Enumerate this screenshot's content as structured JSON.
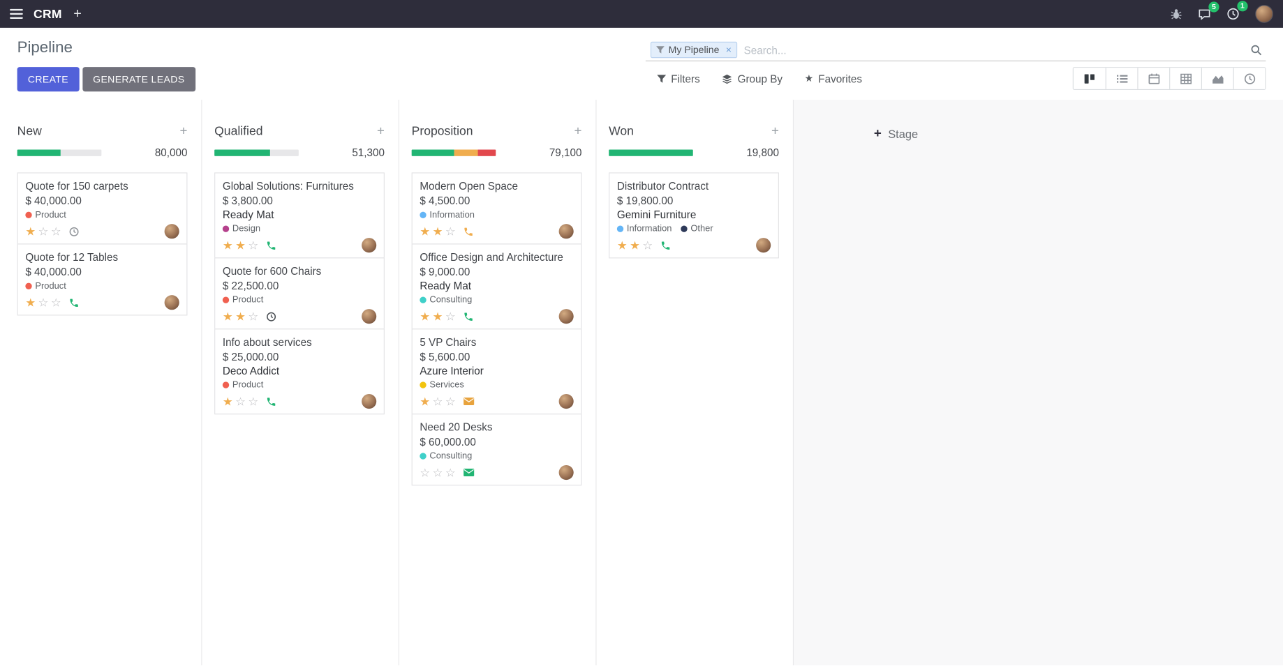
{
  "navbar": {
    "app_name": "CRM",
    "messages_badge": "5",
    "activities_badge": "1"
  },
  "control_panel": {
    "title": "Pipeline",
    "create_label": "CREATE",
    "generate_leads_label": "GENERATE LEADS",
    "search": {
      "facet_label": "My Pipeline",
      "facet_remove": "×",
      "placeholder": "Search..."
    },
    "menus": {
      "filters": "Filters",
      "group_by": "Group By",
      "favorites": "Favorites"
    }
  },
  "colors": {
    "primary_button": "#5261d9",
    "secondary_button": "#71717b",
    "progress_green": "#21b573",
    "progress_yellow": "#f0ad4e",
    "progress_red": "#e2484d",
    "notification_badge": "#23c16b",
    "star_filled": "#f0ad4e",
    "navbar_bg": "#2e2d3b"
  },
  "icons": {
    "navbar": [
      "apps-menu-icon",
      "add-tab-icon",
      "bug-icon",
      "messages-icon",
      "activities-clock-icon",
      "user-avatar"
    ],
    "search": [
      "filter-funnel-icon",
      "search-icon"
    ],
    "menus": [
      "filter-funnel-icon",
      "layers-icon",
      "star-icon"
    ],
    "view_switcher": [
      "kanban-view-icon",
      "list-view-icon",
      "calendar-view-icon",
      "pivot-view-icon",
      "graph-view-icon",
      "activity-view-icon"
    ],
    "card_activity_types": [
      "clock",
      "phone",
      "envelope"
    ]
  },
  "board": {
    "add_column_label": "Stage",
    "columns": [
      {
        "name": "New",
        "counter": "80,000",
        "progress": [
          {
            "color": "#21b573",
            "pct": 51
          }
        ],
        "cards": [
          {
            "title": "Quote for 150 carpets",
            "amount": "$ 40,000.00",
            "tags": [
              {
                "label": "Product",
                "color": "#f06050"
              }
            ],
            "stars": 1,
            "activity": {
              "type": "clock",
              "color": "#8f9398"
            }
          },
          {
            "title": "Quote for 12 Tables",
            "amount": "$ 40,000.00",
            "tags": [
              {
                "label": "Product",
                "color": "#f06050"
              }
            ],
            "stars": 1,
            "activity": {
              "type": "phone",
              "color": "#21b573"
            }
          }
        ]
      },
      {
        "name": "Qualified",
        "counter": "51,300",
        "progress": [
          {
            "color": "#21b573",
            "pct": 66
          }
        ],
        "cards": [
          {
            "title": "Global Solutions: Furnitures",
            "amount": "$ 3,800.00",
            "company": "Ready Mat",
            "tags": [
              {
                "label": "Design",
                "color": "#b5418c"
              }
            ],
            "stars": 2,
            "activity": {
              "type": "phone",
              "color": "#21b573"
            }
          },
          {
            "title": "Quote for 600 Chairs",
            "amount": "$ 22,500.00",
            "tags": [
              {
                "label": "Product",
                "color": "#f06050"
              }
            ],
            "stars": 2,
            "activity": {
              "type": "clock",
              "color": "#4a4f54"
            }
          },
          {
            "title": "Info about services",
            "amount": "$ 25,000.00",
            "company": "Deco Addict",
            "tags": [
              {
                "label": "Product",
                "color": "#f06050"
              }
            ],
            "stars": 1,
            "activity": {
              "type": "phone",
              "color": "#21b573"
            }
          }
        ]
      },
      {
        "name": "Proposition",
        "counter": "79,100",
        "progress": [
          {
            "color": "#21b573",
            "pct": 50
          },
          {
            "color": "#f0ad4e",
            "pct": 29
          },
          {
            "color": "#e2484d",
            "pct": 21
          }
        ],
        "cards": [
          {
            "title": "Modern Open Space",
            "amount": "$ 4,500.00",
            "tags": [
              {
                "label": "Information",
                "color": "#64b5f6"
              }
            ],
            "stars": 2,
            "activity": {
              "type": "phone",
              "color": "#f0ad4e"
            }
          },
          {
            "title": "Office Design and Architecture",
            "amount": "$ 9,000.00",
            "company": "Ready Mat",
            "tags": [
              {
                "label": "Consulting",
                "color": "#3fd0c9"
              }
            ],
            "stars": 2,
            "activity": {
              "type": "phone",
              "color": "#21b573"
            }
          },
          {
            "title": "5 VP Chairs",
            "amount": "$ 5,600.00",
            "company": "Azure Interior",
            "tags": [
              {
                "label": "Services",
                "color": "#f2c40f"
              }
            ],
            "stars": 1,
            "activity": {
              "type": "envelope",
              "color": "#e8a33d"
            }
          },
          {
            "title": "Need 20 Desks",
            "amount": "$ 60,000.00",
            "tags": [
              {
                "label": "Consulting",
                "color": "#3fd0c9"
              }
            ],
            "stars": 0,
            "activity": {
              "type": "envelope",
              "color": "#21b573"
            }
          }
        ]
      },
      {
        "name": "Won",
        "counter": "19,800",
        "progress": [
          {
            "color": "#21b573",
            "pct": 100
          }
        ],
        "cards": [
          {
            "title": "Distributor Contract",
            "amount": "$ 19,800.00",
            "company": "Gemini Furniture",
            "tags": [
              {
                "label": "Information",
                "color": "#64b5f6"
              },
              {
                "label": "Other",
                "color": "#2e3a59"
              }
            ],
            "stars": 2,
            "activity": {
              "type": "phone",
              "color": "#21b573"
            }
          }
        ]
      }
    ]
  }
}
